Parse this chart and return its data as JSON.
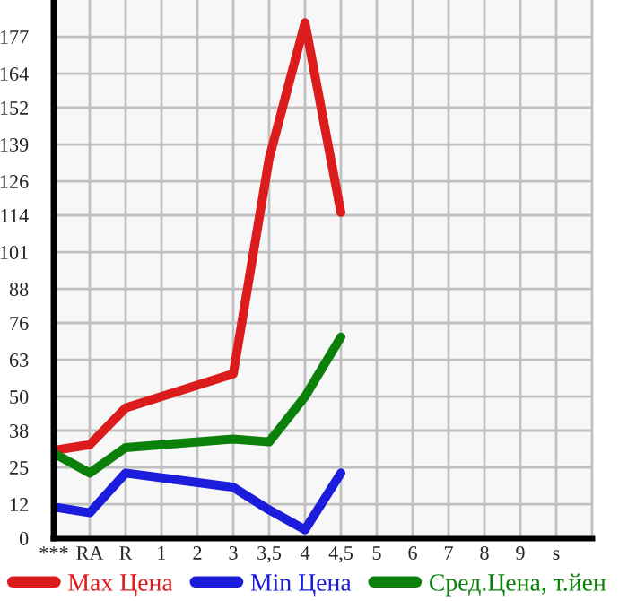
{
  "chart_data": {
    "type": "line",
    "categories": [
      "***",
      "RA",
      "R",
      "1",
      "2",
      "3",
      "3,5",
      "4",
      "4,5",
      "5",
      "6",
      "7",
      "8",
      "9",
      "s"
    ],
    "series": [
      {
        "name": "Max Цена",
        "color": "#dc1c1c",
        "values": [
          31,
          33,
          46,
          null,
          null,
          58,
          134,
          182,
          115,
          null,
          null,
          null,
          null,
          null,
          null
        ]
      },
      {
        "name": "Min Цена",
        "color": "#1c1cdc",
        "values": [
          11,
          9,
          23,
          null,
          null,
          18,
          10,
          3,
          23,
          null,
          null,
          null,
          null,
          null,
          null
        ]
      },
      {
        "name": "Сред.Цена, т.йен",
        "color": "#0b800b",
        "values": [
          30,
          23,
          32,
          null,
          null,
          35,
          34,
          50,
          71,
          null,
          null,
          null,
          null,
          null,
          null
        ]
      }
    ],
    "ylim": [
      0,
      190
    ],
    "yticks": [
      0,
      12,
      25,
      38,
      50,
      63,
      76,
      88,
      101,
      114,
      126,
      139,
      152,
      164,
      177
    ],
    "grid": true,
    "legend": "bottom",
    "line_style": "solid"
  }
}
